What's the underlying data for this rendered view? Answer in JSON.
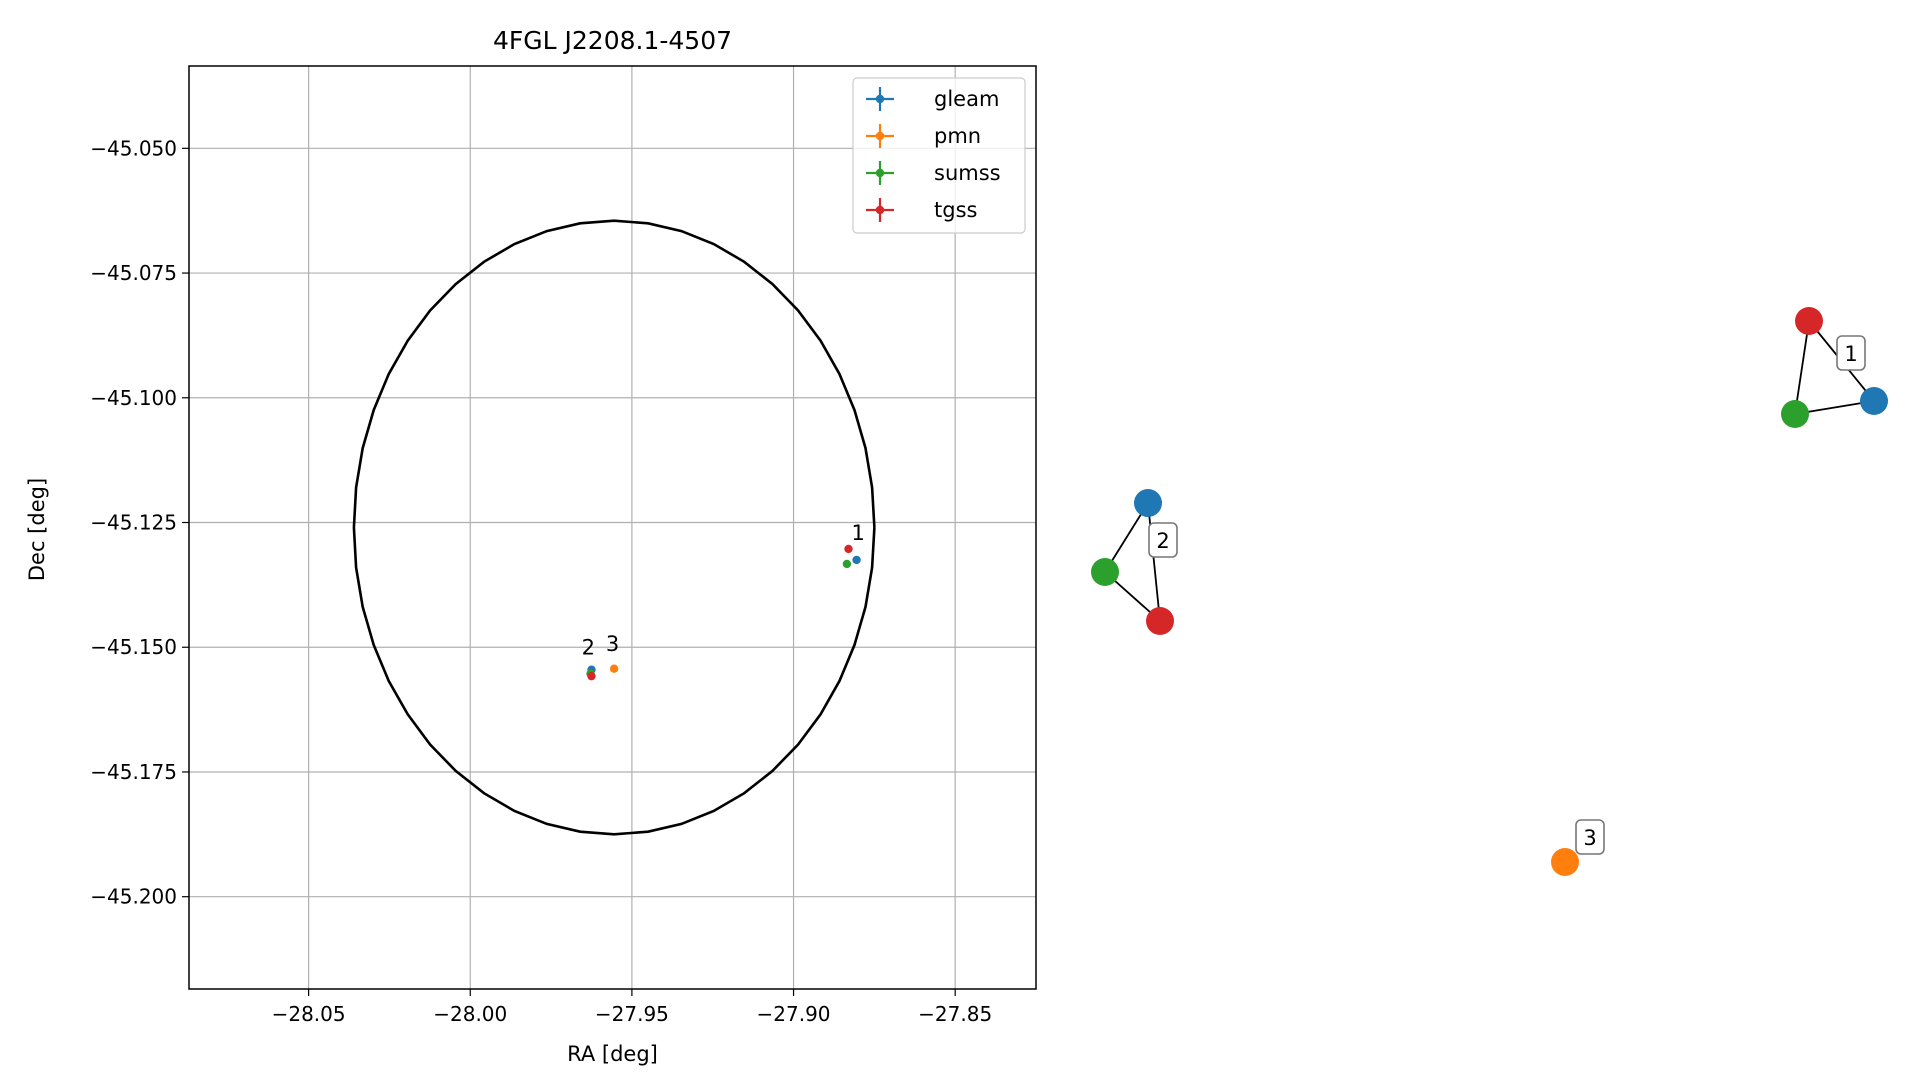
{
  "chart_data": [
    {
      "type": "scatter",
      "title": "4FGL J2208.1-4507",
      "xlabel": "RA [deg]",
      "ylabel": "Dec [deg]",
      "xlim": [
        -28.087,
        -27.825
      ],
      "ylim": [
        -45.2185,
        -45.0335
      ],
      "xticks": [
        {
          "value": -28.05,
          "label": "−28.05"
        },
        {
          "value": -28.0,
          "label": "−28.00"
        },
        {
          "value": -27.95,
          "label": "−27.95"
        },
        {
          "value": -27.9,
          "label": "−27.90"
        },
        {
          "value": -27.85,
          "label": "−27.85"
        }
      ],
      "yticks": [
        {
          "value": -45.05,
          "label": "−45.050"
        },
        {
          "value": -45.075,
          "label": "−45.075"
        },
        {
          "value": -45.1,
          "label": "−45.100"
        },
        {
          "value": -45.125,
          "label": "−45.125"
        },
        {
          "value": -45.15,
          "label": "−45.150"
        },
        {
          "value": -45.175,
          "label": "−45.175"
        },
        {
          "value": -45.2,
          "label": "−45.200"
        }
      ],
      "grid": true,
      "legend_position": "top-right",
      "ellipse": {
        "center_ra": -27.9555,
        "center_dec": -45.126,
        "semi_ra": 0.0805,
        "semi_dec": 0.0615
      },
      "series": [
        {
          "name": "gleam",
          "color": "#1f77b4",
          "points": [
            {
              "ra": -27.8805,
              "dec": -45.1325
            },
            {
              "ra": -27.9625,
              "dec": -45.1545
            }
          ]
        },
        {
          "name": "pmn",
          "color": "#ff7f0e",
          "points": [
            {
              "ra": -27.9555,
              "dec": -45.1543
            }
          ]
        },
        {
          "name": "sumss",
          "color": "#2ca02c",
          "points": [
            {
              "ra": -27.8835,
              "dec": -45.1333
            },
            {
              "ra": -27.9628,
              "dec": -45.1553
            }
          ]
        },
        {
          "name": "tgss",
          "color": "#d62728",
          "points": [
            {
              "ra": -27.883,
              "dec": -45.1303
            },
            {
              "ra": -27.9625,
              "dec": -45.1558
            }
          ]
        }
      ],
      "annotations": [
        {
          "text": "1",
          "ra": -27.88,
          "dec": -45.1285
        },
        {
          "text": "2",
          "ra": -27.9635,
          "dec": -45.1515
        },
        {
          "text": "3",
          "ra": -27.956,
          "dec": -45.1508
        }
      ]
    },
    {
      "type": "graph",
      "nodes": [
        {
          "id": "1-gleam",
          "color": "#1f77b4"
        },
        {
          "id": "1-sumss",
          "color": "#2ca02c"
        },
        {
          "id": "1-tgss",
          "color": "#d62728"
        },
        {
          "id": "2-gleam",
          "color": "#1f77b4"
        },
        {
          "id": "2-sumss",
          "color": "#2ca02c"
        },
        {
          "id": "2-tgss",
          "color": "#d62728"
        },
        {
          "id": "3-pmn",
          "color": "#ff7f0e"
        }
      ],
      "edges": [
        [
          "1-tgss",
          "1-gleam"
        ],
        [
          "1-tgss",
          "1-sumss"
        ],
        [
          "1-sumss",
          "1-gleam"
        ],
        [
          "2-gleam",
          "2-sumss"
        ],
        [
          "2-gleam",
          "2-tgss"
        ],
        [
          "2-sumss",
          "2-tgss"
        ]
      ],
      "group_labels": [
        "1",
        "2",
        "3"
      ]
    }
  ]
}
